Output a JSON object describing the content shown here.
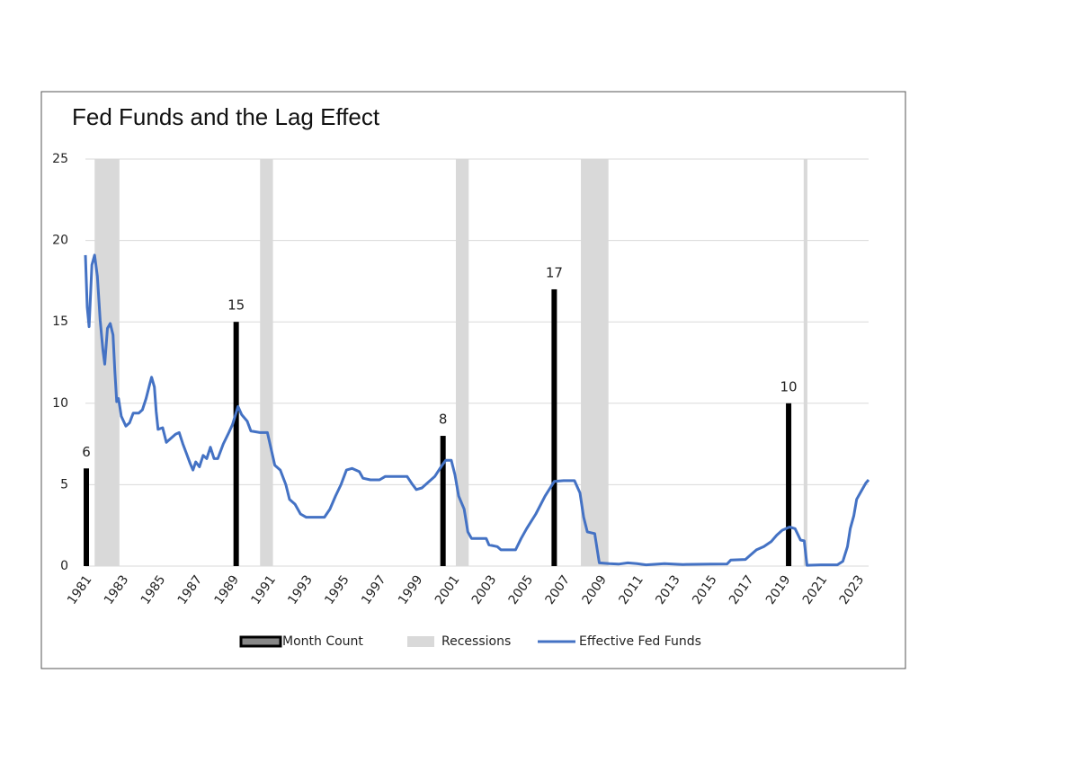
{
  "chart_data": {
    "type": "combo",
    "title": "Fed Funds and the Lag Effect",
    "xlim": [
      1981,
      2023.6
    ],
    "xticks": [
      1981,
      1983,
      1985,
      1987,
      1989,
      1991,
      1993,
      1995,
      1997,
      1999,
      2001,
      2003,
      2005,
      2007,
      2009,
      2011,
      2013,
      2015,
      2017,
      2019,
      2021,
      2023
    ],
    "ylim": [
      0,
      25
    ],
    "yticks": [
      0,
      5,
      10,
      15,
      20,
      25
    ],
    "grid": true,
    "legend": "bottom",
    "series": [
      {
        "name": "Month Count",
        "type": "bar",
        "color": "#000000",
        "x": [
          1981.05,
          1989.2,
          2000.45,
          2006.5,
          2019.25
        ],
        "values": [
          6,
          15,
          8,
          17,
          10
        ]
      },
      {
        "name": "Recessions",
        "type": "band",
        "color": "#d9d9d9",
        "spans": [
          [
            1981.5,
            1982.85
          ],
          [
            1990.5,
            1991.2
          ],
          [
            2001.15,
            2001.85
          ],
          [
            2007.95,
            2009.45
          ],
          [
            2020.07,
            2020.27
          ]
        ]
      },
      {
        "name": "Effective Fed Funds",
        "type": "line",
        "color": "#4472c4",
        "x": [
          1981.0,
          1981.1,
          1981.2,
          1981.35,
          1981.5,
          1981.65,
          1981.8,
          1981.95,
          1982.05,
          1982.2,
          1982.35,
          1982.5,
          1982.6,
          1982.7,
          1982.8,
          1982.95,
          1983.2,
          1983.4,
          1983.6,
          1983.9,
          1984.1,
          1984.3,
          1984.5,
          1984.6,
          1984.75,
          1984.85,
          1984.95,
          1985.2,
          1985.4,
          1985.7,
          1985.9,
          1986.1,
          1986.3,
          1986.5,
          1986.7,
          1986.85,
          1987.0,
          1987.2,
          1987.4,
          1987.6,
          1987.8,
          1988.0,
          1988.2,
          1988.5,
          1988.8,
          1989.0,
          1989.3,
          1989.5,
          1989.8,
          1990.0,
          1990.5,
          1990.9,
          1991.1,
          1991.3,
          1991.6,
          1991.9,
          1992.1,
          1992.4,
          1992.7,
          1993.0,
          1993.5,
          1994.0,
          1994.3,
          1994.6,
          1994.9,
          1995.2,
          1995.5,
          1995.9,
          1996.1,
          1996.5,
          1997.0,
          1997.3,
          1997.8,
          1998.5,
          1998.8,
          1999.0,
          1999.3,
          1999.7,
          2000.0,
          2000.4,
          2000.6,
          2000.9,
          2001.1,
          2001.3,
          2001.6,
          2001.8,
          2002.0,
          2002.8,
          2002.95,
          2003.4,
          2003.6,
          2004.4,
          2004.7,
          2005.0,
          2005.5,
          2006.0,
          2006.5,
          2007.0,
          2007.6,
          2007.9,
          2008.1,
          2008.3,
          2008.7,
          2008.95,
          2009.5,
          2010.0,
          2010.5,
          2011.0,
          2011.5,
          2012.5,
          2013.5,
          2015.0,
          2015.9,
          2016.1,
          2016.9,
          2017.2,
          2017.5,
          2017.9,
          2018.3,
          2018.6,
          2018.9,
          2019.3,
          2019.6,
          2019.9,
          2020.1,
          2020.25,
          2021.0,
          2021.9,
          2022.2,
          2022.45,
          2022.6,
          2022.8,
          2022.95,
          2023.2,
          2023.45,
          2023.6
        ],
        "values": [
          19.1,
          15.9,
          14.7,
          18.5,
          19.1,
          17.8,
          15.1,
          13.3,
          12.4,
          14.6,
          14.9,
          14.2,
          12.0,
          10.1,
          10.3,
          9.2,
          8.6,
          8.8,
          9.4,
          9.4,
          9.6,
          10.3,
          11.2,
          11.6,
          11.0,
          9.5,
          8.4,
          8.5,
          7.6,
          7.9,
          8.1,
          8.2,
          7.5,
          6.9,
          6.3,
          5.9,
          6.4,
          6.1,
          6.8,
          6.6,
          7.3,
          6.6,
          6.6,
          7.5,
          8.2,
          8.7,
          9.8,
          9.3,
          8.9,
          8.3,
          8.2,
          8.2,
          7.2,
          6.2,
          5.9,
          5.0,
          4.1,
          3.8,
          3.2,
          3.0,
          3.0,
          3.0,
          3.5,
          4.3,
          5.0,
          5.9,
          6.0,
          5.8,
          5.4,
          5.3,
          5.3,
          5.5,
          5.5,
          5.5,
          5.0,
          4.7,
          4.8,
          5.2,
          5.5,
          6.2,
          6.5,
          6.5,
          5.6,
          4.3,
          3.5,
          2.1,
          1.7,
          1.7,
          1.3,
          1.2,
          1.0,
          1.0,
          1.7,
          2.3,
          3.2,
          4.3,
          5.2,
          5.25,
          5.25,
          4.5,
          3.0,
          2.1,
          2.0,
          0.2,
          0.15,
          0.12,
          0.2,
          0.15,
          0.08,
          0.15,
          0.1,
          0.12,
          0.13,
          0.37,
          0.41,
          0.7,
          1.0,
          1.2,
          1.5,
          1.9,
          2.2,
          2.4,
          2.3,
          1.6,
          1.55,
          0.05,
          0.08,
          0.08,
          0.3,
          1.2,
          2.3,
          3.1,
          4.1,
          4.6,
          5.1,
          5.3
        ]
      }
    ]
  }
}
